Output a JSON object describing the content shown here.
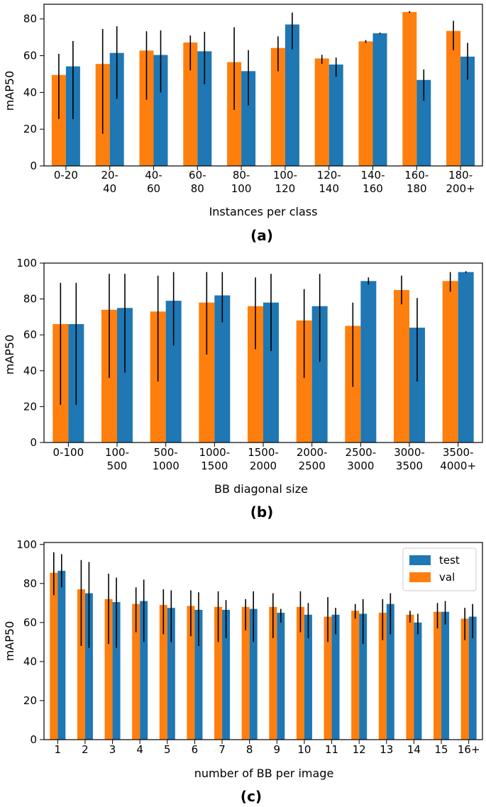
{
  "colors": {
    "val": "#ff7f0e",
    "test": "#1f77b4",
    "error": "#000000",
    "axis": "#000000"
  },
  "chart_data": [
    {
      "type": "bar",
      "panel": "(a)",
      "ylabel": "mAP50",
      "xlabel": "Instances per class",
      "ylim": [
        0,
        88
      ],
      "yticks": [
        0,
        20,
        40,
        60,
        80
      ],
      "categories": [
        [
          "0-20"
        ],
        [
          "20-",
          "40"
        ],
        [
          "40-",
          "60"
        ],
        [
          "60-",
          "80"
        ],
        [
          "80-",
          "100"
        ],
        [
          "100-",
          "120"
        ],
        [
          "120-",
          "140"
        ],
        [
          "140-",
          "160"
        ],
        [
          "160-",
          "180"
        ],
        [
          "180-",
          "200+"
        ]
      ],
      "series": [
        {
          "name": "val",
          "values": [
            49.5,
            55.5,
            62.8,
            67.2,
            56.5,
            64.2,
            58.5,
            67.8,
            83.8,
            73.5
          ],
          "err_low": [
            25.5,
            17.5,
            36,
            52,
            30.5,
            51.5,
            55.5,
            67,
            83.3,
            63
          ],
          "err_high": [
            61,
            74.5,
            73.3,
            71,
            75.5,
            70.5,
            60.5,
            68.5,
            84.3,
            79
          ]
        },
        {
          "name": "test",
          "values": [
            54.2,
            61.5,
            60.4,
            62.4,
            51.6,
            77,
            55.2,
            72.2,
            46.8,
            59.5
          ],
          "err_low": [
            25.5,
            36.5,
            40,
            44.5,
            33,
            63.5,
            48.5,
            72,
            35.5,
            47
          ],
          "err_high": [
            68,
            76,
            73.8,
            73,
            63,
            83.5,
            59,
            72.6,
            52.5,
            67
          ]
        }
      ]
    },
    {
      "type": "bar",
      "panel": "(b)",
      "ylabel": "mAP50",
      "xlabel": "BB diagonal size",
      "ylim": [
        0,
        100
      ],
      "yticks": [
        0,
        20,
        40,
        60,
        80,
        100
      ],
      "categories": [
        [
          "0-100"
        ],
        [
          "100-",
          "500"
        ],
        [
          "500-",
          "1000"
        ],
        [
          "1000-",
          "1500"
        ],
        [
          "1500-",
          "2000"
        ],
        [
          "2000-",
          "2500"
        ],
        [
          "2500-",
          "3000"
        ],
        [
          "3000-",
          "3500"
        ],
        [
          "3500-",
          "4000+"
        ]
      ],
      "series": [
        {
          "name": "val",
          "values": [
            66,
            74,
            73,
            78,
            76,
            68,
            65,
            85,
            90
          ],
          "err_low": [
            21,
            36,
            34,
            49,
            52,
            36,
            31,
            77,
            84
          ],
          "err_high": [
            89,
            94,
            93,
            95,
            92,
            85.5,
            78,
            93,
            95
          ]
        },
        {
          "name": "test",
          "values": [
            66,
            75,
            79,
            82,
            78,
            76,
            90,
            64,
            95
          ],
          "err_low": [
            21,
            39,
            54,
            67,
            51,
            45,
            88,
            34,
            94.5
          ],
          "err_high": [
            89,
            94,
            95,
            95,
            94,
            94,
            92,
            80.5,
            95.5
          ]
        }
      ]
    },
    {
      "type": "bar",
      "panel": "(c)",
      "ylabel": "mAP50",
      "xlabel": "number of BB per image",
      "ylim": [
        0,
        101
      ],
      "yticks": [
        0,
        20,
        40,
        60,
        80,
        100
      ],
      "categories": [
        [
          "1"
        ],
        [
          "2"
        ],
        [
          "3"
        ],
        [
          "4"
        ],
        [
          "5"
        ],
        [
          "6"
        ],
        [
          "7"
        ],
        [
          "8"
        ],
        [
          "9"
        ],
        [
          "10"
        ],
        [
          "11"
        ],
        [
          "12"
        ],
        [
          "13"
        ],
        [
          "14"
        ],
        [
          "15"
        ],
        [
          "16+"
        ]
      ],
      "legend": [
        "test",
        "val"
      ],
      "legend_position": "top-right",
      "series": [
        {
          "name": "val",
          "values": [
            85.5,
            77,
            72,
            69.5,
            69,
            68.5,
            68,
            68,
            68,
            68,
            63,
            66,
            65,
            64,
            65.5,
            62
          ],
          "err_low": [
            74,
            48,
            49,
            55,
            54,
            53,
            50,
            56,
            52,
            55,
            50,
            62,
            51,
            60,
            57,
            51
          ],
          "err_high": [
            96,
            92,
            85,
            78,
            77,
            76.5,
            76,
            72,
            75,
            76,
            73,
            69.5,
            72,
            66,
            70,
            67.5
          ]
        },
        {
          "name": "test",
          "values": [
            86.5,
            75,
            70.5,
            71,
            67.5,
            66.5,
            66.5,
            67,
            65,
            64,
            64,
            64.5,
            69.5,
            60,
            65.5,
            63
          ],
          "err_low": [
            78,
            47,
            47,
            50,
            50,
            48,
            52,
            50,
            60,
            52,
            54,
            49,
            54,
            54,
            59,
            52
          ],
          "err_high": [
            95,
            91,
            83,
            82,
            76.5,
            75.5,
            71.5,
            76,
            67,
            70,
            67.5,
            72,
            75,
            64.5,
            71,
            69.5
          ]
        }
      ]
    }
  ]
}
